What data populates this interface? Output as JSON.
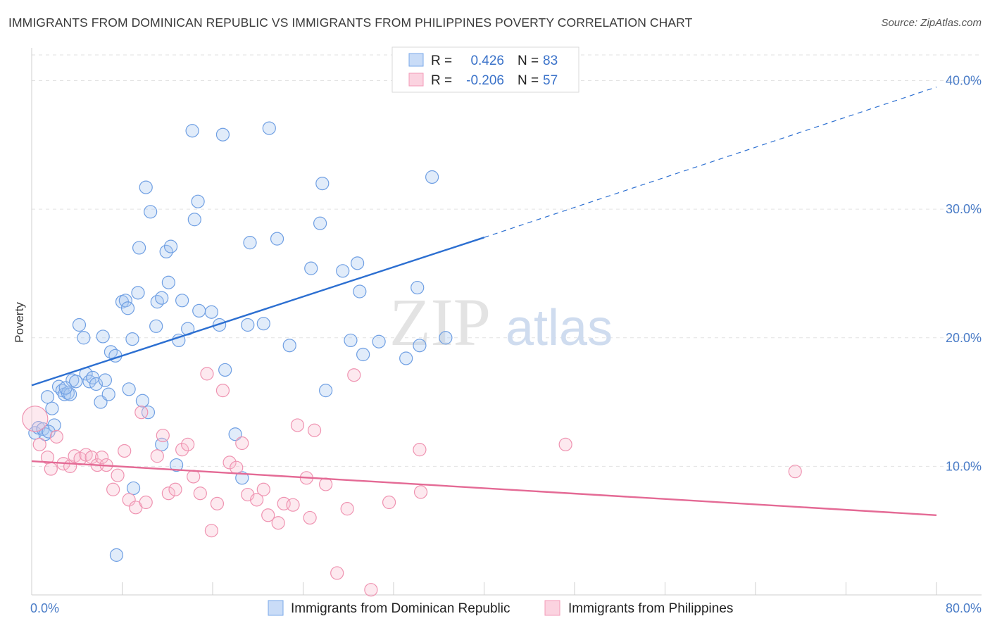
{
  "title": "IMMIGRANTS FROM DOMINICAN REPUBLIC VS IMMIGRANTS FROM PHILIPPINES POVERTY CORRELATION CHART",
  "source": "Source: ZipAtlas.com",
  "watermark": {
    "zip": "ZIP",
    "atlas": "atlas"
  },
  "chart_data": {
    "type": "scatter",
    "ylabel": "Poverty",
    "xlabel": "",
    "xlim": [
      0,
      80
    ],
    "ylim": [
      0,
      42
    ],
    "x_tick_labels": {
      "left": "0.0%",
      "right": "80.0%"
    },
    "y_ticks": [
      10,
      20,
      30,
      40
    ],
    "y_tick_labels": [
      "10.0%",
      "20.0%",
      "30.0%",
      "40.0%"
    ],
    "grid": true,
    "legend_top": [
      {
        "r_label": "R =",
        "r": "0.426",
        "n_label": "N =",
        "n": "83",
        "color": "#7aa9ea"
      },
      {
        "r_label": "R =",
        "r": "-0.206",
        "n_label": "N =",
        "n": "57",
        "color": "#f39bb8"
      }
    ],
    "series": [
      {
        "name": "Immigrants from Dominican Republic",
        "color": "#7aa9ea",
        "line_color": "#2c6fd1",
        "trend": {
          "x0": 0,
          "y0": 16.3,
          "x1": 40,
          "y1": 27.8,
          "x_dash_end": 80,
          "y_dash_end": 39.5
        },
        "points": [
          [
            0.3,
            12.6
          ],
          [
            0.6,
            13.0
          ],
          [
            1.0,
            12.9
          ],
          [
            1.2,
            12.5
          ],
          [
            1.4,
            15.4
          ],
          [
            1.8,
            14.5
          ],
          [
            2.0,
            13.2
          ],
          [
            2.4,
            16.2
          ],
          [
            2.7,
            15.9
          ],
          [
            2.9,
            15.6
          ],
          [
            3.2,
            15.7
          ],
          [
            3.4,
            15.6
          ],
          [
            3.6,
            16.7
          ],
          [
            3.9,
            16.6
          ],
          [
            4.2,
            21.0
          ],
          [
            4.6,
            20.0
          ],
          [
            4.8,
            17.2
          ],
          [
            5.1,
            16.6
          ],
          [
            5.4,
            16.9
          ],
          [
            5.7,
            16.4
          ],
          [
            6.1,
            15.0
          ],
          [
            6.3,
            20.1
          ],
          [
            6.5,
            16.7
          ],
          [
            6.8,
            15.6
          ],
          [
            7.0,
            18.9
          ],
          [
            7.4,
            18.6
          ],
          [
            8.0,
            22.8
          ],
          [
            8.3,
            22.9
          ],
          [
            8.5,
            22.3
          ],
          [
            8.6,
            16.0
          ],
          [
            8.9,
            19.9
          ],
          [
            9.4,
            23.5
          ],
          [
            9.5,
            27.0
          ],
          [
            9.8,
            15.1
          ],
          [
            10.1,
            31.7
          ],
          [
            10.3,
            14.2
          ],
          [
            10.5,
            29.8
          ],
          [
            11.0,
            20.9
          ],
          [
            11.1,
            22.8
          ],
          [
            11.5,
            23.1
          ],
          [
            11.9,
            26.7
          ],
          [
            12.1,
            24.3
          ],
          [
            12.3,
            27.1
          ],
          [
            13.0,
            19.8
          ],
          [
            13.3,
            22.9
          ],
          [
            13.8,
            20.7
          ],
          [
            14.2,
            36.1
          ],
          [
            14.4,
            29.2
          ],
          [
            14.7,
            30.6
          ],
          [
            14.8,
            22.1
          ],
          [
            15.9,
            22.0
          ],
          [
            16.6,
            21.0
          ],
          [
            16.9,
            35.8
          ],
          [
            17.1,
            17.5
          ],
          [
            18.0,
            12.5
          ],
          [
            18.6,
            9.1
          ],
          [
            19.1,
            21.0
          ],
          [
            19.3,
            27.4
          ],
          [
            20.5,
            21.1
          ],
          [
            21.0,
            36.3
          ],
          [
            21.7,
            27.7
          ],
          [
            22.8,
            19.4
          ],
          [
            24.7,
            25.4
          ],
          [
            25.5,
            28.9
          ],
          [
            25.7,
            32.0
          ],
          [
            26.0,
            15.9
          ],
          [
            27.5,
            25.2
          ],
          [
            28.2,
            19.8
          ],
          [
            28.8,
            25.8
          ],
          [
            29.0,
            23.6
          ],
          [
            29.3,
            18.7
          ],
          [
            30.7,
            19.7
          ],
          [
            33.1,
            18.4
          ],
          [
            34.1,
            23.9
          ],
          [
            34.3,
            19.4
          ],
          [
            35.4,
            32.5
          ],
          [
            36.6,
            20.0
          ],
          [
            7.5,
            3.1
          ],
          [
            9.0,
            8.3
          ],
          [
            11.5,
            11.7
          ],
          [
            12.8,
            10.1
          ],
          [
            1.5,
            12.7
          ],
          [
            3.0,
            16.1
          ]
        ]
      },
      {
        "name": "Immigrants from Philippines",
        "color": "#f39bb8",
        "line_color": "#e46a95",
        "trend": {
          "x0": 0,
          "y0": 10.4,
          "x1": 80,
          "y1": 6.2
        },
        "points": [
          [
            0.3,
            13.7
          ],
          [
            0.7,
            11.7
          ],
          [
            1.4,
            10.7
          ],
          [
            1.7,
            9.8
          ],
          [
            2.2,
            12.3
          ],
          [
            2.8,
            10.2
          ],
          [
            3.4,
            10.0
          ],
          [
            3.8,
            10.8
          ],
          [
            4.3,
            10.6
          ],
          [
            4.8,
            10.9
          ],
          [
            5.3,
            10.7
          ],
          [
            5.8,
            10.1
          ],
          [
            6.2,
            10.7
          ],
          [
            6.6,
            10.1
          ],
          [
            7.2,
            8.2
          ],
          [
            7.6,
            9.3
          ],
          [
            8.2,
            11.2
          ],
          [
            8.6,
            7.4
          ],
          [
            9.2,
            6.8
          ],
          [
            9.7,
            14.2
          ],
          [
            10.1,
            7.2
          ],
          [
            11.1,
            10.8
          ],
          [
            11.6,
            12.4
          ],
          [
            12.1,
            7.9
          ],
          [
            12.7,
            8.2
          ],
          [
            13.3,
            11.3
          ],
          [
            13.8,
            11.7
          ],
          [
            14.3,
            9.2
          ],
          [
            14.9,
            7.9
          ],
          [
            15.5,
            17.2
          ],
          [
            15.9,
            5.0
          ],
          [
            16.4,
            7.1
          ],
          [
            16.9,
            15.9
          ],
          [
            17.5,
            10.3
          ],
          [
            18.1,
            9.9
          ],
          [
            18.6,
            11.8
          ],
          [
            19.1,
            7.8
          ],
          [
            19.9,
            7.4
          ],
          [
            20.5,
            8.2
          ],
          [
            20.9,
            6.2
          ],
          [
            21.8,
            5.6
          ],
          [
            22.3,
            7.1
          ],
          [
            23.1,
            7.0
          ],
          [
            23.5,
            13.2
          ],
          [
            24.3,
            9.1
          ],
          [
            24.6,
            6.0
          ],
          [
            25.0,
            12.8
          ],
          [
            26.0,
            8.6
          ],
          [
            27.0,
            1.7
          ],
          [
            27.9,
            6.7
          ],
          [
            28.5,
            17.1
          ],
          [
            30.0,
            0.4
          ],
          [
            31.6,
            7.2
          ],
          [
            34.3,
            11.3
          ],
          [
            34.4,
            8.0
          ],
          [
            47.2,
            11.7
          ],
          [
            67.5,
            9.6
          ]
        ]
      }
    ]
  }
}
